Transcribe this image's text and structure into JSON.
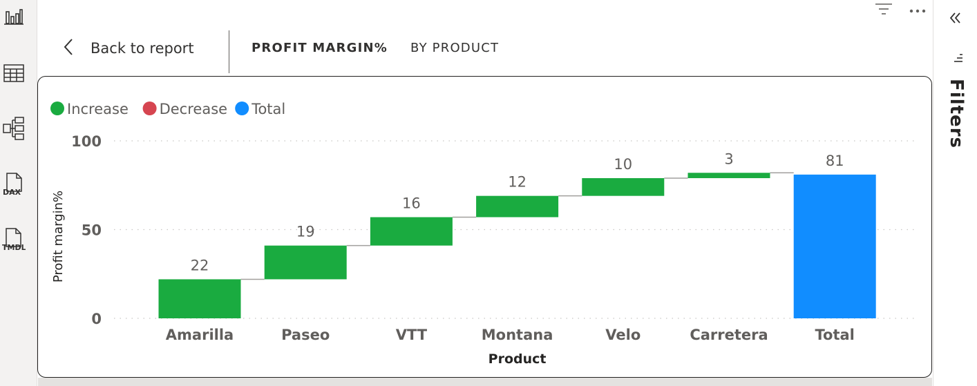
{
  "toolbar": {
    "filter_icon": "filter-lines-icon",
    "more_icon": "more-options-icon"
  },
  "left_rail": {
    "items": [
      {
        "name": "report-view",
        "icon": "bar-chart-icon"
      },
      {
        "name": "table-view",
        "icon": "table-grid-icon"
      },
      {
        "name": "model-view",
        "icon": "model-diagram-icon"
      },
      {
        "name": "dax-query-view",
        "icon": "dax-file-icon",
        "badge": "DAX"
      },
      {
        "name": "tmdl-view",
        "icon": "tmdl-file-icon",
        "badge": "TMDL"
      }
    ]
  },
  "header": {
    "back_label": "Back to report",
    "title": "PROFIT MARGIN%",
    "subtitle": "BY PRODUCT"
  },
  "filters_pane": {
    "label": "Filters",
    "collapse_icon": "double-chevron-left-icon",
    "filter_icon": "filter-lines-icon"
  },
  "colors": {
    "increase": "#1aab40",
    "decrease": "#d64550",
    "total": "#118dff"
  },
  "chart_data": {
    "type": "waterfall",
    "legend": [
      {
        "name": "Increase",
        "color": "#1aab40"
      },
      {
        "name": "Decrease",
        "color": "#d64550"
      },
      {
        "name": "Total",
        "color": "#118dff"
      }
    ],
    "legend_position": "top-left",
    "categories": [
      "Amarilla",
      "Paseo",
      "VTT",
      "Montana",
      "Velo",
      "Carretera",
      "Total"
    ],
    "values": [
      22,
      19,
      16,
      12,
      10,
      3,
      81
    ],
    "kinds": [
      "increase",
      "increase",
      "increase",
      "increase",
      "increase",
      "increase",
      "total"
    ],
    "data_labels": [
      "22",
      "19",
      "16",
      "12",
      "10",
      "3",
      "81"
    ],
    "xlabel": "Product",
    "ylabel": "Profit margin%",
    "ylim": [
      0,
      100
    ],
    "yticks": [
      0,
      50,
      100
    ],
    "ytick_labels": [
      "0",
      "50",
      "100"
    ],
    "grid": true
  }
}
